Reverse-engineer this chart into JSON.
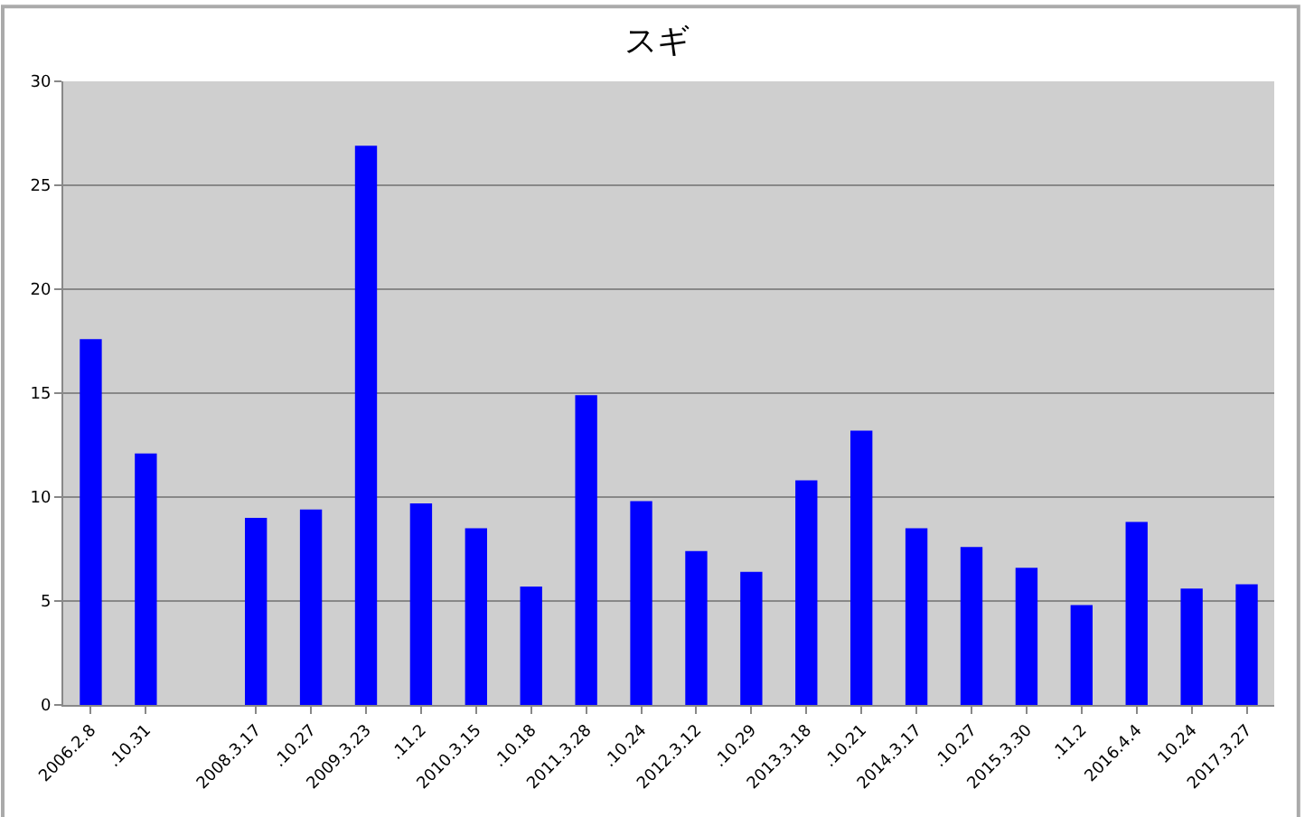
{
  "chart_data": {
    "type": "bar",
    "title": "スギ",
    "categories": [
      "2006.2.8",
      ".10.31",
      null,
      "2008.3.17",
      ".10.27",
      "2009.3.23",
      ".11.2",
      "2010.3.15",
      ".10.18",
      "2011.3.28",
      ".10.24",
      "2012.3.12",
      ".10.29",
      "2013.3.18",
      ".10.21",
      "2014.3.17",
      ".10.27",
      "2015.3.30",
      ".11.2",
      "2016.4.4",
      "10.24",
      "2017.3.27"
    ],
    "series": [
      {
        "color": "#0000ff",
        "values": [
          17.6,
          12.1,
          null,
          9.0,
          9.4,
          26.9,
          9.7,
          8.5,
          5.7,
          14.9,
          9.8,
          7.4,
          6.4,
          10.8,
          13.2,
          8.5,
          7.6,
          6.6,
          4.8,
          8.8,
          5.6,
          5.8
        ]
      }
    ],
    "ylim": [
      0,
      30
    ],
    "yticks": [
      0,
      5,
      10,
      15,
      20,
      25,
      30
    ],
    "grid": "y"
  }
}
